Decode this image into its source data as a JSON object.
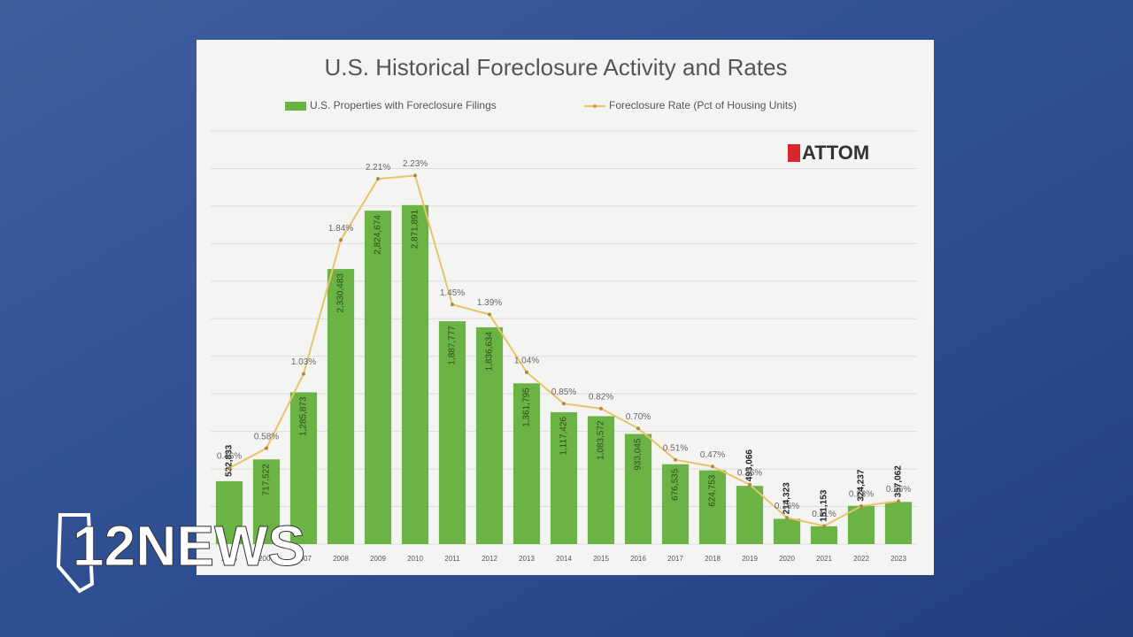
{
  "chart_data": {
    "type": "bar",
    "title": "U.S. Historical Foreclosure Activity and Rates",
    "categories": [
      "2005",
      "2006",
      "2007",
      "2008",
      "2009",
      "2010",
      "2011",
      "2012",
      "2013",
      "2014",
      "2015",
      "2016",
      "2017",
      "2018",
      "2019",
      "2020",
      "2021",
      "2022",
      "2023"
    ],
    "series": [
      {
        "name": "U.S. Properties with Foreclosure Filings",
        "type": "bar",
        "color": "#6ab344",
        "values": [
          532833,
          717522,
          1285873,
          2330483,
          2824674,
          2871891,
          1887777,
          1836634,
          1361795,
          1117426,
          1083572,
          933045,
          676535,
          624753,
          493066,
          214323,
          151153,
          324237,
          357062
        ],
        "value_labels": [
          "532,833",
          "717,522",
          "1,285,873",
          "2,330,483",
          "2,824,674",
          "2,871,891",
          "1,887,777",
          "1,836,634",
          "1,361,795",
          "1,117,426",
          "1,083,572",
          "933,045",
          "676,535",
          "624,753",
          "493,066",
          "214,323",
          "151,153",
          "324,237",
          "357,062"
        ]
      },
      {
        "name": "Foreclosure Rate (Pct of Housing Units)",
        "type": "line",
        "axis": "y2",
        "color": "#e8c36a",
        "values": [
          0.46,
          0.58,
          1.03,
          1.84,
          2.21,
          2.23,
          1.45,
          1.39,
          1.04,
          0.85,
          0.82,
          0.7,
          0.51,
          0.47,
          0.36,
          0.16,
          0.11,
          0.23,
          0.26
        ],
        "value_labels": [
          "0.46%",
          "0.58%",
          "1.03%",
          "1.84%",
          "2.21%",
          "2.23%",
          "1.45%",
          "1.39%",
          "1.04%",
          "0.85%",
          "0.82%",
          "0.70%",
          "0.51%",
          "0.47%",
          "0.36%",
          "0.16%",
          "0.11%",
          "0.23%",
          "0.26%"
        ]
      }
    ],
    "ylim": [
      0,
      3500000
    ],
    "y2lim": [
      0,
      2.5
    ],
    "grid": true
  },
  "watermark": "ATTOM",
  "broadcaster_logo": "12NEWS"
}
